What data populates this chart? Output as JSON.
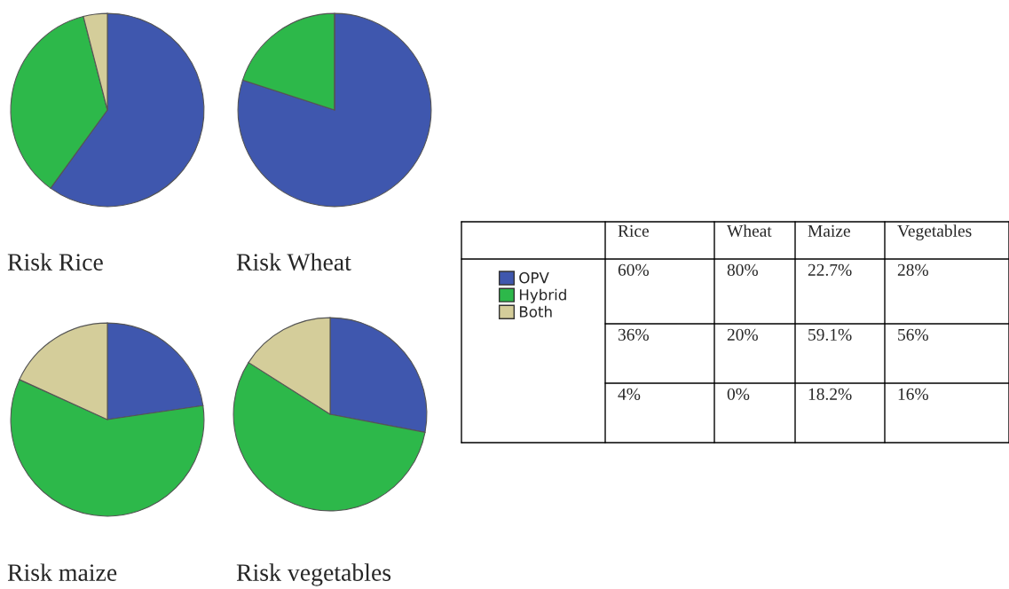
{
  "chart_data": [
    {
      "type": "pie",
      "title": "Risk Rice",
      "categories": [
        null,
        null,
        null
      ],
      "values": [
        60,
        36,
        4
      ],
      "colors": [
        "#3f57ae",
        "#2db84a",
        "#d4cd9a"
      ]
    },
    {
      "type": "pie",
      "title": "Risk Wheat",
      "categories": [
        null,
        null,
        null
      ],
      "values": [
        80,
        20,
        0
      ],
      "colors": [
        "#3f57ae",
        "#2db84a",
        "#d4cd9a"
      ]
    },
    {
      "type": "pie",
      "title": "Risk maize",
      "categories": [
        null,
        null,
        null
      ],
      "values": [
        22.7,
        59.1,
        18.2
      ],
      "colors": [
        "#3f57ae",
        "#2db84a",
        "#d4cd9a"
      ]
    },
    {
      "type": "pie",
      "title": "Risk vegetables",
      "categories": [
        null,
        null,
        null
      ],
      "values": [
        28,
        56,
        16
      ],
      "colors": [
        "#3f57ae",
        "#2db84a",
        "#d4cd9a"
      ]
    },
    {
      "type": "other",
      "categories": [
        "Rice",
        "Wheat",
        "Maize",
        "Vegetables"
      ],
      "legend": "left",
      "series": [
        {
          "name": "OPV",
          "color": "#3f57ae",
          "values": [
            60,
            80,
            22.7,
            28
          ],
          "value_labels": [
            "60%",
            "80%",
            "22.7%",
            "28%"
          ]
        },
        {
          "name": "Hybrid",
          "color": "#2db84a",
          "values": [
            36,
            20,
            59.1,
            56
          ],
          "value_labels": [
            "36%",
            "20%",
            "59.1%",
            "56%"
          ]
        },
        {
          "name": "Both",
          "color": "#d4cd9a",
          "values": [
            4,
            0,
            18.2,
            16
          ],
          "value_labels": [
            "4%",
            "0%",
            "18.2%",
            "16%"
          ]
        }
      ]
    }
  ]
}
